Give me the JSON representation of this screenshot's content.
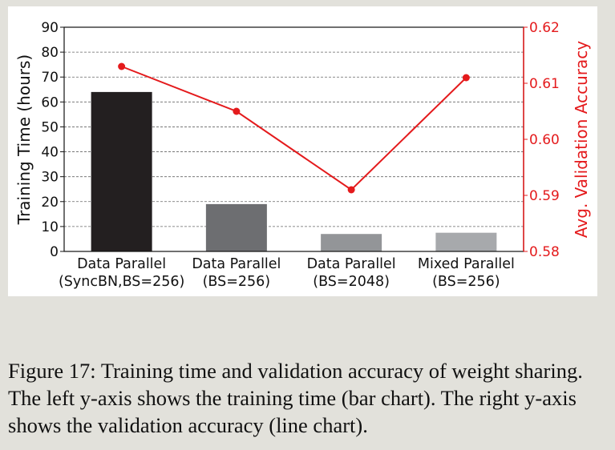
{
  "chart_data": {
    "type": "bar",
    "categories": [
      [
        "Data Parallel",
        "(SyncBN,BS=256)"
      ],
      [
        "Data Parallel",
        "(BS=256)"
      ],
      [
        "Data Parallel",
        "(BS=2048)"
      ],
      [
        "Mixed Parallel",
        "(BS=256)"
      ]
    ],
    "series": [
      {
        "type": "bar",
        "axis": "left",
        "values": [
          64,
          19,
          7,
          7.5
        ],
        "colors": [
          "#231f20",
          "#6d6e71",
          "#939598",
          "#a7a9ac"
        ]
      },
      {
        "type": "line",
        "axis": "right",
        "values": [
          0.613,
          0.605,
          0.591,
          0.611
        ],
        "color": "#e41a1c"
      }
    ],
    "ylabel": "Training Time (hours)",
    "ylim": [
      0,
      90
    ],
    "yticks": [
      0,
      10,
      20,
      30,
      40,
      50,
      60,
      70,
      80,
      90
    ],
    "y2label": "Avg. Validation Accuracy",
    "y2lim": [
      0.58,
      0.62
    ],
    "y2ticks": [
      "0.58",
      "0.59",
      "0.60",
      "0.61",
      "0.62"
    ],
    "y2color": "#e41a1c",
    "grid": true
  },
  "caption": "Figure 17: Training time and validation accuracy of weight sharing. The left y-axis shows the training time (bar chart). The right y-axis shows the validation accuracy (line chart)."
}
